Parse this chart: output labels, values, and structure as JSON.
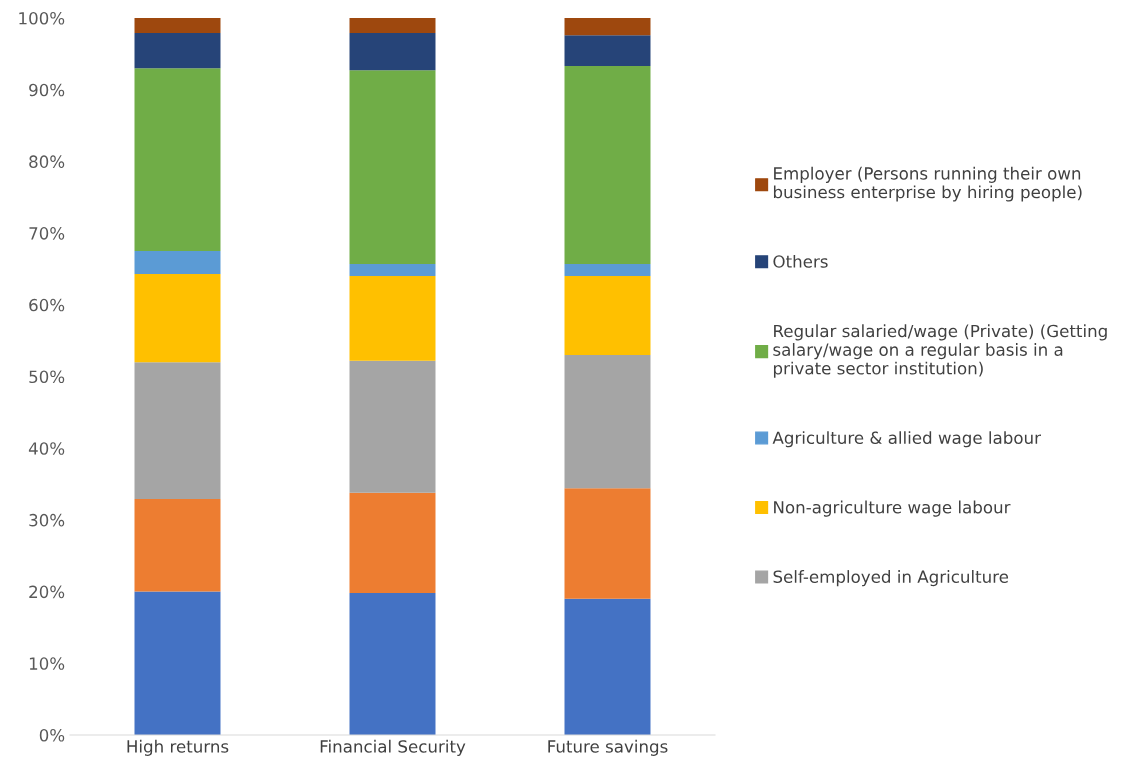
{
  "chart_data": {
    "type": "bar",
    "stacked": true,
    "categories": [
      "High returns",
      "Financial Security",
      "Future savings"
    ],
    "series": [
      {
        "color": "#4472c4",
        "values": [
          20.0,
          19.8,
          19.0
        ]
      },
      {
        "color": "#ed7d31",
        "values": [
          12.9,
          14.0,
          15.4
        ]
      },
      {
        "name": "Self-employed in Agriculture",
        "color": "#a5a5a5",
        "values": [
          19.1,
          18.4,
          18.6
        ]
      },
      {
        "name": "Non-agriculture wage labour",
        "color": "#ffc000",
        "values": [
          12.3,
          11.8,
          11.0
        ]
      },
      {
        "name": "Agriculture & allied wage labour",
        "color": "#5b9bd5",
        "values": [
          3.2,
          1.7,
          1.7
        ]
      },
      {
        "name": "Regular salaried/wage (Private) (Getting salary/wage on a regular basis in a private sector institution)",
        "color": "#70ad47",
        "values": [
          25.5,
          27.0,
          27.6
        ]
      },
      {
        "name": "Others",
        "color": "#264478",
        "values": [
          4.9,
          5.2,
          4.3
        ]
      },
      {
        "name": "Employer (Persons running their own business enterprise by hiring people)",
        "color": "#9e480e",
        "values": [
          2.1,
          2.1,
          2.4
        ]
      }
    ],
    "ylim": [
      0,
      100
    ],
    "yticks": [
      {
        "value": 0,
        "label": "0%"
      },
      {
        "value": 10,
        "label": "10%"
      },
      {
        "value": 20,
        "label": "20%"
      },
      {
        "value": 30,
        "label": "30%"
      },
      {
        "value": 40,
        "label": "40%"
      },
      {
        "value": 50,
        "label": "50%"
      },
      {
        "value": 60,
        "label": "60%"
      },
      {
        "value": 70,
        "label": "70%"
      },
      {
        "value": 80,
        "label": "80%"
      },
      {
        "value": 90,
        "label": "90%"
      },
      {
        "value": 100,
        "label": "100%"
      }
    ],
    "grid": false,
    "legend": "right"
  }
}
